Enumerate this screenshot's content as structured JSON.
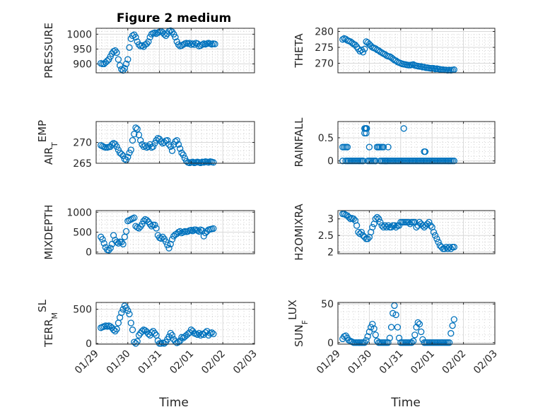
{
  "figure_title": "Figure 2 medium",
  "colors": {
    "marker": "#0072BD",
    "axis": "#262626",
    "grid": "#d9d9d9",
    "background": "#ffffff"
  },
  "x_ticks": [
    "01/29",
    "01/30",
    "01/31",
    "02/01",
    "02/02",
    "02/03"
  ],
  "x_label": "Time",
  "chart_data": [
    {
      "type": "scatter",
      "ylabel": "PRESSURE",
      "title": "Figure 2 medium",
      "xlim": [
        "01/29",
        "02/03"
      ],
      "ylim": [
        870,
        1020
      ],
      "yticks": [
        900,
        950,
        1000
      ],
      "grid": true,
      "x": [
        0.15,
        0.2,
        0.25,
        0.3,
        0.35,
        0.4,
        0.45,
        0.5,
        0.55,
        0.6,
        0.65,
        0.7,
        0.75,
        0.8,
        0.85,
        0.9,
        0.95,
        1.0,
        1.05,
        1.1,
        1.15,
        1.2,
        1.25,
        1.3,
        1.35,
        1.4,
        1.45,
        1.5,
        1.55,
        1.6,
        1.65,
        1.7,
        1.75,
        1.8,
        1.85,
        1.9,
        1.95,
        2.0,
        2.05,
        2.1,
        2.15,
        2.2,
        2.25,
        2.3,
        2.35,
        2.4,
        2.45,
        2.5,
        2.55,
        2.6,
        2.65,
        2.7,
        2.75,
        2.8,
        2.85,
        2.9,
        2.95,
        3.0,
        3.05,
        3.1,
        3.15,
        3.2,
        3.25,
        3.3,
        3.35,
        3.4,
        3.45,
        3.5,
        3.55,
        3.6,
        3.65,
        3.7,
        3.75
      ],
      "y": [
        902,
        900,
        900,
        905,
        910,
        915,
        925,
        935,
        942,
        945,
        938,
        915,
        895,
        882,
        878,
        885,
        900,
        915,
        955,
        985,
        995,
        998,
        990,
        975,
        965,
        960,
        962,
        958,
        965,
        968,
        975,
        990,
        1000,
        1003,
        1005,
        1002,
        1005,
        1008,
        1010,
        1006,
        1000,
        995,
        1002,
        1010,
        1012,
        1008,
        1000,
        990,
        975,
        965,
        960,
        962,
        965,
        968,
        970,
        968,
        970,
        965,
        968,
        965,
        970,
        968,
        960,
        962,
        965,
        968,
        966,
        968,
        970,
        968,
        966,
        968,
        967
      ]
    },
    {
      "type": "scatter",
      "ylabel": "THETA",
      "xlim": [
        "01/29",
        "02/03"
      ],
      "ylim": [
        267,
        281
      ],
      "yticks": [
        270,
        275,
        280
      ],
      "grid": true,
      "x": [
        0.15,
        0.2,
        0.25,
        0.3,
        0.35,
        0.4,
        0.45,
        0.5,
        0.55,
        0.6,
        0.65,
        0.7,
        0.75,
        0.8,
        0.85,
        0.9,
        0.95,
        1.0,
        1.05,
        1.1,
        1.15,
        1.2,
        1.25,
        1.3,
        1.35,
        1.4,
        1.45,
        1.5,
        1.55,
        1.6,
        1.65,
        1.7,
        1.75,
        1.8,
        1.85,
        1.9,
        1.95,
        2.0,
        2.05,
        2.1,
        2.15,
        2.2,
        2.25,
        2.3,
        2.35,
        2.4,
        2.45,
        2.5,
        2.55,
        2.6,
        2.65,
        2.7,
        2.75,
        2.8,
        2.85,
        2.9,
        2.95,
        3.0,
        3.05,
        3.1,
        3.15,
        3.2,
        3.25,
        3.3,
        3.35,
        3.4,
        3.45,
        3.5,
        3.55,
        3.6,
        3.65,
        3.7
      ],
      "y": [
        277.5,
        277.8,
        277.6,
        277.2,
        277,
        276.8,
        276.4,
        276,
        275.8,
        275.2,
        274.5,
        273.8,
        274.2,
        273.5,
        274.5,
        276.8,
        276.5,
        276,
        275.5,
        275,
        274.8,
        274.6,
        274.2,
        274,
        273.6,
        273.3,
        273,
        272.8,
        272.4,
        272.2,
        272.1,
        271.8,
        271.4,
        271,
        270.8,
        270.4,
        270.2,
        270,
        269.8,
        269.7,
        269.6,
        269.5,
        269.4,
        269.4,
        269.5,
        269.6,
        269.3,
        269.2,
        269.1,
        269,
        269,
        268.8,
        268.8,
        268.6,
        268.6,
        268.5,
        268.4,
        268.4,
        268.4,
        268.2,
        268.3,
        268.2,
        268.1,
        268,
        268,
        267.9,
        267.9,
        267.8,
        267.9,
        267.8,
        267.9,
        268
      ]
    },
    {
      "type": "scatter",
      "ylabel": "AIR_TEMP",
      "xlim": [
        "01/29",
        "02/03"
      ],
      "ylim": [
        265,
        275
      ],
      "yticks": [
        265,
        270
      ],
      "grid": true,
      "x": [
        0.15,
        0.2,
        0.25,
        0.3,
        0.35,
        0.4,
        0.45,
        0.5,
        0.55,
        0.6,
        0.65,
        0.7,
        0.75,
        0.8,
        0.85,
        0.9,
        0.95,
        1.0,
        1.05,
        1.1,
        1.15,
        1.2,
        1.25,
        1.3,
        1.35,
        1.4,
        1.45,
        1.5,
        1.55,
        1.6,
        1.65,
        1.7,
        1.75,
        1.8,
        1.85,
        1.9,
        1.95,
        2.0,
        2.05,
        2.1,
        2.15,
        2.2,
        2.25,
        2.3,
        2.35,
        2.4,
        2.45,
        2.5,
        2.55,
        2.6,
        2.65,
        2.7,
        2.75,
        2.8,
        2.85,
        2.9,
        2.95,
        3.0,
        3.05,
        3.1,
        3.15,
        3.2,
        3.25,
        3.3,
        3.35,
        3.4,
        3.45,
        3.5,
        3.55,
        3.6,
        3.65,
        3.7
      ],
      "y": [
        269.3,
        269.1,
        268.9,
        268.8,
        268.8,
        268.9,
        269,
        269.5,
        269.8,
        269.6,
        269,
        268.2,
        267.5,
        267.2,
        266.8,
        266,
        265.8,
        266.5,
        267.5,
        268.2,
        270.5,
        272,
        273.5,
        273.2,
        271.8,
        270.5,
        269.5,
        269,
        269.2,
        268.8,
        269,
        269.5,
        268.8,
        269,
        269.8,
        270.5,
        271,
        270.8,
        270.2,
        269.8,
        270,
        270.4,
        270.5,
        269.5,
        269,
        268,
        269.5,
        270.2,
        270.5,
        269.5,
        268.5,
        267.5,
        267,
        266.2,
        265.5,
        265.2,
        265.1,
        265.2,
        265.3,
        265.1,
        265.2,
        265.3,
        265.2,
        265.1,
        265.3,
        265.2,
        265.4,
        265.3,
        265.2,
        265.4,
        265.3,
        265.2
      ]
    },
    {
      "type": "scatter",
      "ylabel": "RAINFALL",
      "xlim": [
        "01/29",
        "02/03"
      ],
      "ylim": [
        -0.05,
        0.85
      ],
      "yticks": [
        0,
        0.5
      ],
      "grid": true,
      "x": [
        0.15,
        0.2,
        0.25,
        0.3,
        0.35,
        0.4,
        0.45,
        0.5,
        0.55,
        0.6,
        0.65,
        0.7,
        0.75,
        0.8,
        0.85,
        0.9,
        0.95,
        1.0,
        1.05,
        1.1,
        1.15,
        1.2,
        1.25,
        1.3,
        1.35,
        1.4,
        1.45,
        1.5,
        1.55,
        1.6,
        1.65,
        1.7,
        1.75,
        1.8,
        1.85,
        1.9,
        1.95,
        2.0,
        2.05,
        2.1,
        2.15,
        2.2,
        2.25,
        2.3,
        2.35,
        2.4,
        2.45,
        2.5,
        2.55,
        2.6,
        2.65,
        2.7,
        2.75,
        2.8,
        2.85,
        2.9,
        2.95,
        3.0,
        3.05,
        3.1,
        3.15,
        3.2,
        3.25,
        3.3,
        3.35,
        3.4,
        3.45,
        3.5,
        3.55,
        3.6,
        3.65,
        3.7,
        0.15,
        0.25,
        0.3,
        0.8,
        0.85,
        0.88,
        0.9,
        0.92,
        1.0,
        1.2,
        1.25,
        1.3,
        1.35,
        1.4,
        1.45,
        1.5,
        1.55,
        1.6,
        2.1,
        2.75,
        2.78,
        0.3,
        0.9
      ],
      "y": [
        0.3,
        0.3,
        0,
        0,
        0,
        0,
        0,
        0,
        0,
        0,
        0,
        0,
        0,
        0,
        0.7,
        0.7,
        0,
        0,
        0,
        0,
        0,
        0,
        0.3,
        0.3,
        0,
        0,
        0,
        0,
        0,
        0,
        0,
        0,
        0,
        0,
        0,
        0,
        0,
        0,
        0,
        0,
        0,
        0,
        0,
        0,
        0,
        0,
        0,
        0,
        0,
        0,
        0,
        0,
        0,
        0,
        0,
        0,
        0,
        0,
        0,
        0,
        0,
        0,
        0,
        0,
        0,
        0,
        0,
        0,
        0,
        0,
        0,
        0,
        0,
        0.3,
        0.3,
        0,
        0.6,
        0.7,
        0.7,
        0.7,
        0.3,
        0,
        0.3,
        0.3,
        0.3,
        0.3,
        0.3,
        0,
        0,
        0.3,
        0.7,
        0.2,
        0.2,
        0.3,
        0.6
      ]
    },
    {
      "type": "scatter",
      "ylabel": "MIXDEPTH",
      "xlim": [
        "01/29",
        "02/03"
      ],
      "ylim": [
        -40,
        1040
      ],
      "yticks": [
        0,
        500,
        1000
      ],
      "grid": true,
      "x": [
        0.15,
        0.2,
        0.25,
        0.3,
        0.35,
        0.4,
        0.45,
        0.5,
        0.55,
        0.6,
        0.65,
        0.7,
        0.75,
        0.8,
        0.85,
        0.9,
        0.95,
        1.0,
        1.05,
        1.1,
        1.15,
        1.2,
        1.25,
        1.3,
        1.35,
        1.4,
        1.45,
        1.5,
        1.55,
        1.6,
        1.65,
        1.7,
        1.75,
        1.8,
        1.85,
        1.9,
        1.95,
        2.0,
        2.05,
        2.1,
        2.15,
        2.2,
        2.25,
        2.3,
        2.35,
        2.4,
        2.45,
        2.5,
        2.55,
        2.6,
        2.65,
        2.7,
        2.75,
        2.8,
        2.85,
        2.9,
        2.95,
        3.0,
        3.05,
        3.1,
        3.15,
        3.2,
        3.25,
        3.3,
        3.35,
        3.4,
        3.45,
        3.5,
        3.55,
        3.6,
        3.65,
        3.7
      ],
      "y": [
        380,
        320,
        220,
        120,
        60,
        50,
        100,
        200,
        420,
        300,
        250,
        220,
        260,
        250,
        200,
        380,
        520,
        780,
        800,
        820,
        840,
        860,
        650,
        620,
        600,
        640,
        700,
        780,
        820,
        800,
        760,
        700,
        650,
        680,
        680,
        600,
        420,
        360,
        340,
        380,
        330,
        260,
        180,
        100,
        200,
        320,
        400,
        440,
        460,
        500,
        520,
        480,
        500,
        520,
        510,
        520,
        540,
        550,
        530,
        560,
        560,
        540,
        520,
        560,
        540,
        400,
        480,
        520,
        560,
        570,
        580,
        590
      ]
    },
    {
      "type": "scatter",
      "ylabel": "H2OMIXRA",
      "xlim": [
        "01/29",
        "02/03"
      ],
      "ylim": [
        1.95,
        3.25
      ],
      "yticks": [
        2,
        2.5,
        3
      ],
      "grid": true,
      "x": [
        0.15,
        0.2,
        0.25,
        0.3,
        0.35,
        0.4,
        0.45,
        0.5,
        0.55,
        0.6,
        0.65,
        0.7,
        0.75,
        0.8,
        0.85,
        0.9,
        0.95,
        1.0,
        1.05,
        1.1,
        1.15,
        1.2,
        1.25,
        1.3,
        1.35,
        1.4,
        1.45,
        1.5,
        1.55,
        1.6,
        1.65,
        1.7,
        1.75,
        1.8,
        1.85,
        1.9,
        1.95,
        2.0,
        2.05,
        2.1,
        2.15,
        2.2,
        2.25,
        2.3,
        2.35,
        2.4,
        2.45,
        2.5,
        2.55,
        2.6,
        2.65,
        2.7,
        2.75,
        2.8,
        2.85,
        2.9,
        2.95,
        3.0,
        3.05,
        3.1,
        3.15,
        3.2,
        3.25,
        3.3,
        3.35,
        3.4,
        3.45,
        3.5,
        3.55,
        3.6,
        3.65,
        3.7
      ],
      "y": [
        3.15,
        3.15,
        3.12,
        3.1,
        3.05,
        3.0,
        3.02,
        3.0,
        2.95,
        2.8,
        2.6,
        2.55,
        2.6,
        2.5,
        2.45,
        2.4,
        2.4,
        2.45,
        2.6,
        2.75,
        2.85,
        3.0,
        3.05,
        3.0,
        2.9,
        2.8,
        2.75,
        2.8,
        2.75,
        2.8,
        2.75,
        2.75,
        2.8,
        2.8,
        2.75,
        2.8,
        2.8,
        2.9,
        2.9,
        2.9,
        2.9,
        2.9,
        2.9,
        2.85,
        2.9,
        2.9,
        2.9,
        2.75,
        2.8,
        2.9,
        2.85,
        2.8,
        2.75,
        2.8,
        2.85,
        2.9,
        2.8,
        2.75,
        2.6,
        2.5,
        2.4,
        2.3,
        2.2,
        2.15,
        2.1,
        2.1,
        2.15,
        2.1,
        2.15,
        2.1,
        2.15,
        2.15
      ]
    },
    {
      "type": "scatter",
      "ylabel": "TERR_MSL",
      "xlim": [
        "01/29",
        "02/03"
      ],
      "ylim": [
        -10,
        600
      ],
      "yticks": [
        0,
        500
      ],
      "grid": true,
      "x": [
        0.15,
        0.2,
        0.25,
        0.3,
        0.35,
        0.4,
        0.45,
        0.5,
        0.55,
        0.6,
        0.65,
        0.7,
        0.75,
        0.8,
        0.85,
        0.9,
        0.95,
        1.0,
        1.05,
        1.1,
        1.15,
        1.2,
        1.25,
        1.3,
        1.35,
        1.4,
        1.45,
        1.5,
        1.55,
        1.6,
        1.65,
        1.7,
        1.75,
        1.8,
        1.85,
        1.9,
        1.95,
        2.0,
        2.05,
        2.1,
        2.15,
        2.2,
        2.25,
        2.3,
        2.35,
        2.4,
        2.45,
        2.5,
        2.55,
        2.6,
        2.65,
        2.7,
        2.75,
        2.8,
        2.85,
        2.9,
        2.95,
        3.0,
        3.05,
        3.1,
        3.15,
        3.2,
        3.25,
        3.3,
        3.35,
        3.4,
        3.45,
        3.5,
        3.55,
        3.6,
        3.65,
        3.7
      ],
      "y": [
        230,
        240,
        250,
        260,
        250,
        260,
        250,
        230,
        200,
        180,
        210,
        300,
        380,
        450,
        500,
        550,
        520,
        480,
        430,
        300,
        200,
        20,
        0,
        30,
        120,
        150,
        180,
        200,
        190,
        170,
        140,
        120,
        160,
        180,
        150,
        120,
        40,
        0,
        0,
        10,
        0,
        20,
        60,
        100,
        150,
        120,
        60,
        30,
        10,
        20,
        40,
        90,
        80,
        100,
        120,
        140,
        160,
        200,
        180,
        150,
        140,
        130,
        150,
        120,
        140,
        130,
        160,
        180,
        120,
        150,
        160,
        140
      ]
    },
    {
      "type": "scatter",
      "ylabel": "SUN_FLUX",
      "xlim": [
        "01/29",
        "02/03"
      ],
      "ylim": [
        -2,
        52
      ],
      "yticks": [
        0,
        50
      ],
      "grid": true,
      "x": [
        0.15,
        0.2,
        0.25,
        0.3,
        0.35,
        0.4,
        0.45,
        0.5,
        0.55,
        0.6,
        0.65,
        0.7,
        0.75,
        0.8,
        0.85,
        0.9,
        0.95,
        1.0,
        1.05,
        1.1,
        1.15,
        1.2,
        1.25,
        1.3,
        1.35,
        1.4,
        1.45,
        1.5,
        1.55,
        1.6,
        1.65,
        1.7,
        1.75,
        1.8,
        1.85,
        1.9,
        1.95,
        2.0,
        2.05,
        2.1,
        2.15,
        2.2,
        2.25,
        2.3,
        2.35,
        2.4,
        2.45,
        2.5,
        2.55,
        2.6,
        2.65,
        2.7,
        2.75,
        2.8,
        2.85,
        2.9,
        2.95,
        3.0,
        3.05,
        3.1,
        3.15,
        3.2,
        3.25,
        3.3,
        3.35,
        3.4,
        3.45,
        3.5,
        3.55,
        3.6,
        3.65,
        3.7
      ],
      "y": [
        5,
        8,
        9,
        6,
        3,
        2,
        1,
        0,
        0,
        0,
        0,
        0,
        0,
        0,
        0,
        3,
        8,
        14,
        20,
        24,
        18,
        10,
        2,
        0,
        0,
        0,
        0,
        0,
        0,
        0,
        6,
        20,
        38,
        48,
        36,
        20,
        6,
        0,
        0,
        0,
        0,
        0,
        0,
        0,
        0,
        2,
        10,
        20,
        26,
        24,
        14,
        4,
        0,
        0,
        0,
        0,
        0,
        0,
        0,
        0,
        0,
        0,
        0,
        0,
        0,
        0,
        0,
        0,
        0,
        12,
        22,
        30
      ]
    }
  ]
}
